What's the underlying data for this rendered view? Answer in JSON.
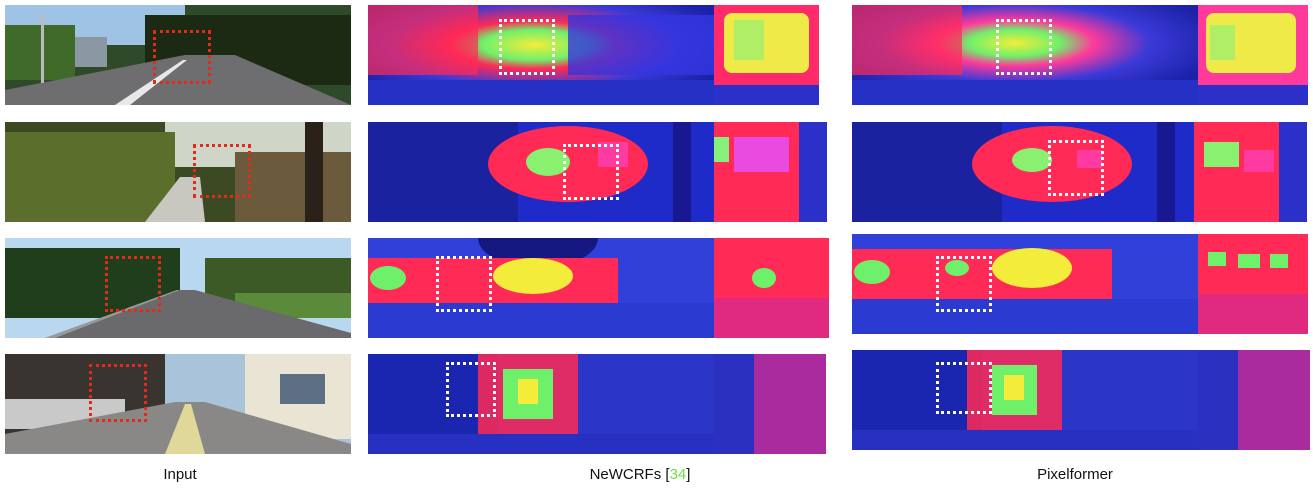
{
  "columns": [
    {
      "label": "Input"
    },
    {
      "label": "NeWCRFs [",
      "ref": "34",
      "suffix": "]"
    },
    {
      "label": "Pixelformer"
    }
  ]
}
